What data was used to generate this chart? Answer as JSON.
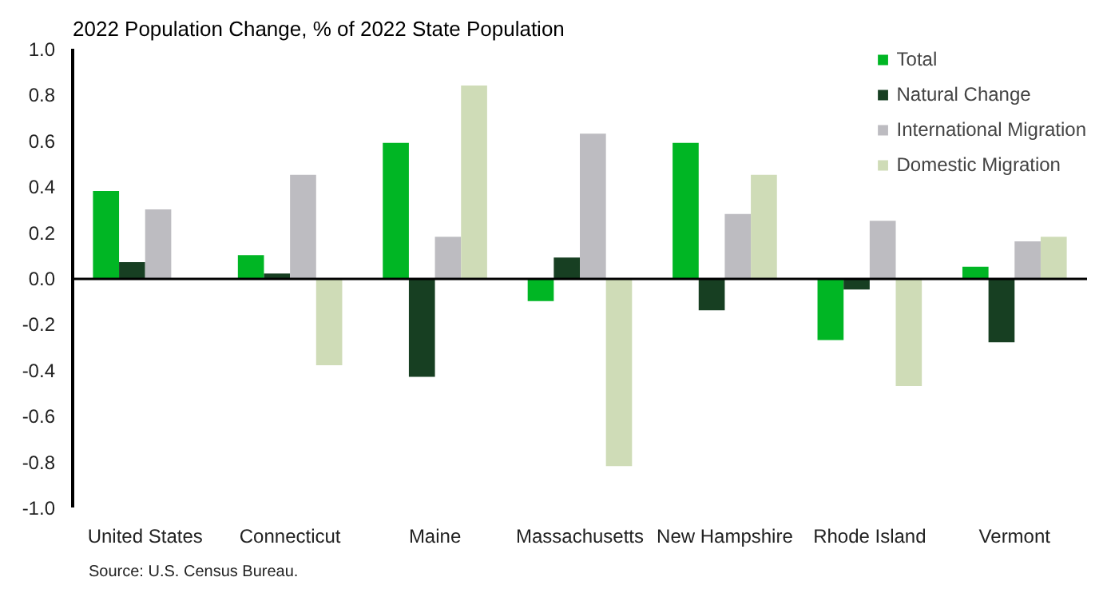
{
  "chart_data": {
    "type": "bar",
    "title": "2022 Population Change, % of 2022 State Population",
    "categories": [
      "United States",
      "Connecticut",
      "Maine",
      "Massachusetts",
      "New Hampshire",
      "Rhode Island",
      "Vermont"
    ],
    "series": [
      {
        "name": "Total",
        "color": "#00b624",
        "values": [
          0.38,
          0.1,
          0.59,
          -0.1,
          0.59,
          -0.27,
          0.05
        ]
      },
      {
        "name": "Natural Change",
        "color": "#173f22",
        "values": [
          0.07,
          0.02,
          -0.43,
          0.09,
          -0.14,
          -0.05,
          -0.28
        ]
      },
      {
        "name": "International Migration",
        "color": "#bdbcc1",
        "values": [
          0.3,
          0.45,
          0.18,
          0.63,
          0.28,
          0.25,
          0.16
        ]
      },
      {
        "name": "Domestic Migration",
        "color": "#cfdcb7",
        "values": [
          0.0,
          -0.38,
          0.84,
          -0.82,
          0.45,
          -0.47,
          0.18
        ]
      }
    ],
    "ylim": [
      -1.0,
      1.0
    ],
    "yticks": [
      {
        "value": -1.0,
        "label": "-1.0"
      },
      {
        "value": -0.8,
        "label": "-0.8"
      },
      {
        "value": -0.6,
        "label": "-0.6"
      },
      {
        "value": -0.4,
        "label": "-0.4"
      },
      {
        "value": -0.2,
        "label": "-0.2"
      },
      {
        "value": 0,
        "label": "0.0"
      },
      {
        "value": 0.2,
        "label": "0.2"
      },
      {
        "value": 0.4,
        "label": "0.4"
      },
      {
        "value": 0.6,
        "label": "0.6"
      },
      {
        "value": 0.8,
        "label": "0.8"
      },
      {
        "value": 1.0,
        "label": "1.0"
      }
    ],
    "legend": "top right",
    "annotations": [
      "Source: U.S. Census Bureau."
    ]
  }
}
